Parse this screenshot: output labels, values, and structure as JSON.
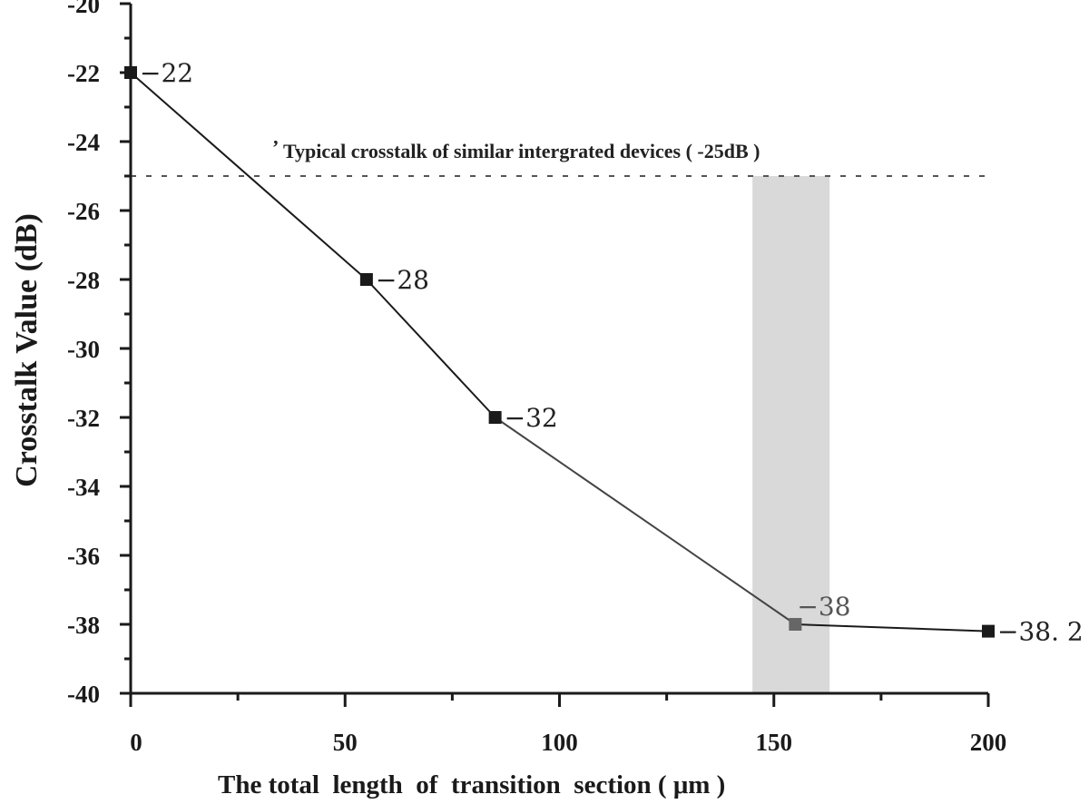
{
  "chart_data": {
    "type": "line",
    "title": "",
    "xlabel": "The total  length  of  transition  section ( μm )",
    "ylabel": "Crosstalk Value (dB)",
    "xlim": [
      0,
      200
    ],
    "ylim": [
      -40,
      -20
    ],
    "x_ticks": [
      0,
      50,
      100,
      150,
      200
    ],
    "x_minor_ticks": [
      25,
      75,
      125,
      175
    ],
    "y_ticks": [
      -20,
      -22,
      -24,
      -26,
      -28,
      -30,
      -32,
      -34,
      -36,
      -38,
      -40
    ],
    "y_minor_ticks": [
      -21,
      -23,
      -25,
      -27,
      -29,
      -31,
      -33,
      -35,
      -37,
      -39
    ],
    "grid": false,
    "legend": null,
    "series": [
      {
        "name": "Crosstalk",
        "x": [
          0,
          55,
          85,
          155,
          200
        ],
        "y": [
          -22,
          -28,
          -32,
          -38,
          -38.2
        ],
        "labels": [
          "−22",
          "−28",
          "−32",
          "−38",
          "−38. 2"
        ],
        "marker": "square",
        "color": "#1a1a1a",
        "highlight_index": 3,
        "highlight_color": "#666666"
      }
    ],
    "reference_line": {
      "y": -25,
      "style": "dashed",
      "color": "#555555",
      "label": "Typical crosstalk of similar intergrated devices ( -25dB )"
    },
    "shaded_region": {
      "x_range": [
        145,
        163
      ],
      "y_range": [
        -40,
        -25
      ],
      "color": "#d9d9d9"
    }
  }
}
